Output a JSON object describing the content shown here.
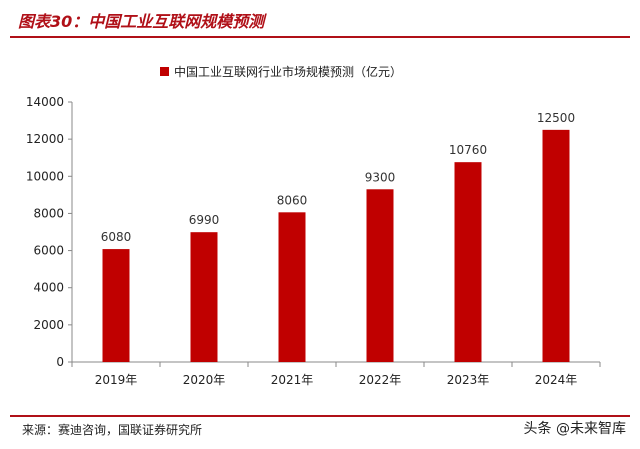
{
  "header": {
    "figure_title": "图表30：中国工业互联网规模预测"
  },
  "footer": {
    "source": "来源：赛迪咨询，国联证券研究所",
    "watermark": "头条 @未来智库"
  },
  "colors": {
    "accent": "#b01018",
    "bar": "#c00000"
  },
  "chart_data": {
    "type": "bar",
    "categories": [
      "2019年",
      "2020年",
      "2021年",
      "2022年",
      "2023年",
      "2024年"
    ],
    "series": [
      {
        "name": "中国工业互联网行业市场规模预测（亿元）",
        "values": [
          6080,
          6990,
          8060,
          9300,
          10760,
          12500
        ]
      }
    ],
    "ylim": [
      0,
      14000
    ],
    "yticks": [
      0,
      2000,
      4000,
      6000,
      8000,
      10000,
      12000,
      14000
    ],
    "grid": false,
    "legend_position": "top-center",
    "data_labels": true
  }
}
